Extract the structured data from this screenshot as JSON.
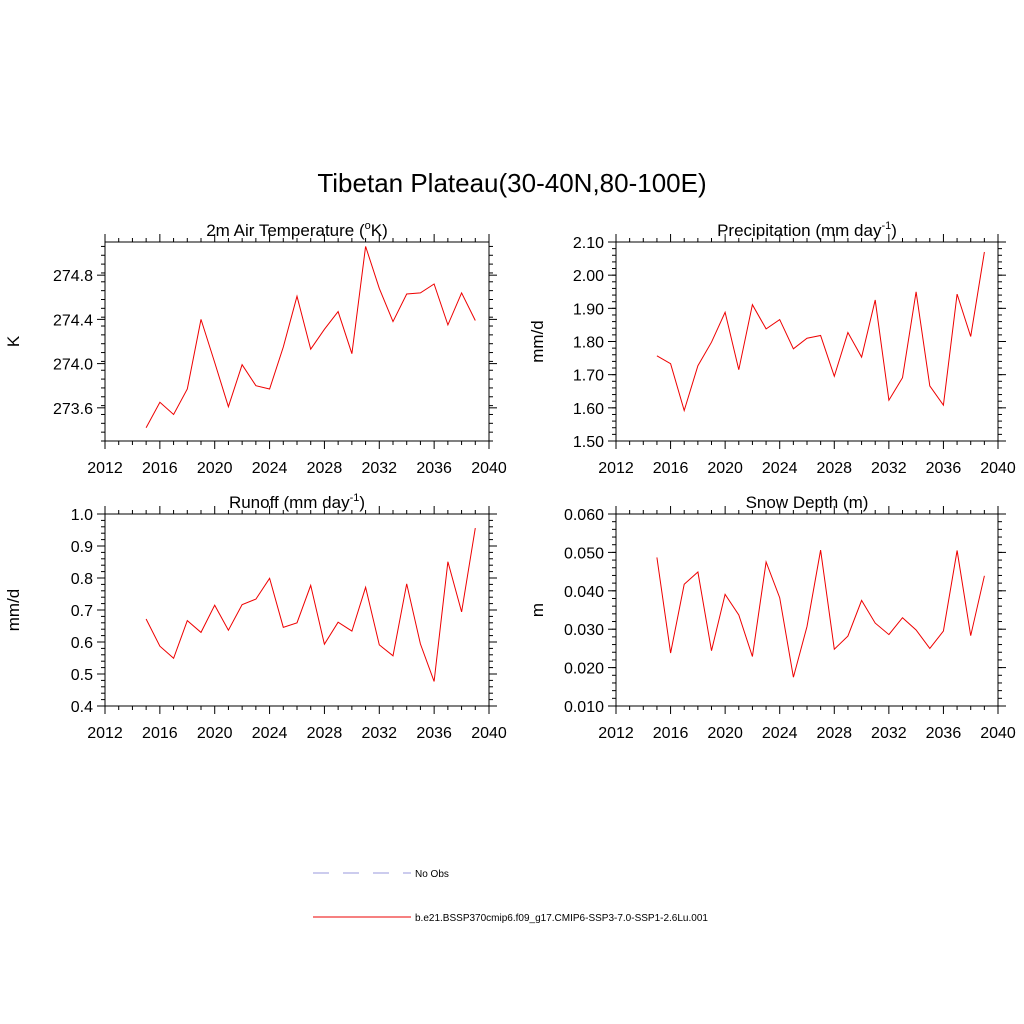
{
  "figure": {
    "title": "Tibetan Plateau(30-40N,80-100E)"
  },
  "legend": [
    {
      "label": "No Obs",
      "color": "#9999dd",
      "style": "dashed"
    },
    {
      "label": "b.e21.BSSP370cmip6.f09_g17.CMIP6-SSP3-7.0-SSP1-2.6Lu.001",
      "color": "#ee0000",
      "style": "solid"
    }
  ],
  "colors": {
    "series": "#ee0000",
    "axis": "#000000"
  },
  "chart_data": [
    {
      "type": "line",
      "title": "2m Air Temperature (",
      "title_sup": "o",
      "title_suffix": "K)",
      "xlabel": "",
      "ylabel": "K",
      "xlim": [
        2012,
        2040
      ],
      "ylim": [
        273.3,
        275.1
      ],
      "xticks": [
        2012,
        2016,
        2020,
        2024,
        2028,
        2032,
        2036,
        2040
      ],
      "xtick_labels": [
        "2012",
        "2016",
        "2020",
        "2024",
        "2028",
        "2032",
        "2036",
        "2040"
      ],
      "yticks": [
        273.6,
        274.0,
        274.4,
        274.8
      ],
      "ytick_labels": [
        "273.6",
        "274.0",
        "274.4",
        "274.8"
      ],
      "series": [
        {
          "x": [
            2015,
            2016,
            2017,
            2018,
            2019,
            2020,
            2021,
            2022,
            2023,
            2024,
            2025,
            2026,
            2027,
            2028,
            2029,
            2030,
            2031,
            2032,
            2033,
            2034,
            2035,
            2036,
            2037,
            2038,
            2039
          ],
          "y": [
            273.42,
            273.65,
            273.54,
            273.77,
            274.4,
            274.01,
            273.61,
            273.99,
            273.8,
            273.77,
            274.15,
            274.61,
            274.13,
            274.31,
            274.47,
            274.09,
            275.06,
            274.68,
            274.38,
            274.63,
            274.64,
            274.72,
            274.35,
            274.64,
            274.39
          ]
        }
      ]
    },
    {
      "type": "line",
      "title": "Precipitation (mm day",
      "title_sup": "-1",
      "title_suffix": ")",
      "xlabel": "",
      "ylabel": "mm/d",
      "xlim": [
        2012,
        2040
      ],
      "ylim": [
        1.5,
        2.1
      ],
      "xticks": [
        2012,
        2016,
        2020,
        2024,
        2028,
        2032,
        2036,
        2040
      ],
      "xtick_labels": [
        "2012",
        "2016",
        "2020",
        "2024",
        "2028",
        "2032",
        "2036",
        "2040"
      ],
      "yticks": [
        1.5,
        1.6,
        1.7,
        1.8,
        1.9,
        2.0,
        2.1
      ],
      "ytick_labels": [
        "1.50",
        "1.60",
        "1.70",
        "1.80",
        "1.90",
        "2.00",
        "2.10"
      ],
      "series": [
        {
          "x": [
            2015,
            2016,
            2017,
            2018,
            2019,
            2020,
            2021,
            2022,
            2023,
            2024,
            2025,
            2026,
            2027,
            2028,
            2029,
            2030,
            2031,
            2032,
            2033,
            2034,
            2035,
            2036,
            2037,
            2038,
            2039
          ],
          "y": [
            1.757,
            1.733,
            1.592,
            1.727,
            1.798,
            1.888,
            1.715,
            1.911,
            1.838,
            1.866,
            1.778,
            1.81,
            1.818,
            1.695,
            1.827,
            1.753,
            1.925,
            1.623,
            1.691,
            1.95,
            1.666,
            1.608,
            1.943,
            1.815,
            2.07
          ]
        }
      ]
    },
    {
      "type": "line",
      "title": "Runoff (mm day",
      "title_sup": "-1",
      "title_suffix": ")",
      "xlabel": "",
      "ylabel": "mm/d",
      "xlim": [
        2012,
        2040
      ],
      "ylim": [
        0.4,
        1.0
      ],
      "xticks": [
        2012,
        2016,
        2020,
        2024,
        2028,
        2032,
        2036,
        2040
      ],
      "xtick_labels": [
        "2012",
        "2016",
        "2020",
        "2024",
        "2028",
        "2032",
        "2036",
        "2040"
      ],
      "yticks": [
        0.4,
        0.5,
        0.6,
        0.7,
        0.8,
        0.9,
        1.0
      ],
      "ytick_labels": [
        "0.4",
        "0.5",
        "0.6",
        "0.7",
        "0.8",
        "0.9",
        "1.0"
      ],
      "series": [
        {
          "x": [
            2015,
            2016,
            2017,
            2018,
            2019,
            2020,
            2021,
            2022,
            2023,
            2024,
            2025,
            2026,
            2027,
            2028,
            2029,
            2030,
            2031,
            2032,
            2033,
            2034,
            2035,
            2036,
            2037,
            2038,
            2039
          ],
          "y": [
            0.672,
            0.587,
            0.549,
            0.667,
            0.63,
            0.715,
            0.637,
            0.717,
            0.734,
            0.799,
            0.646,
            0.66,
            0.777,
            0.593,
            0.662,
            0.634,
            0.771,
            0.591,
            0.557,
            0.782,
            0.594,
            0.477,
            0.851,
            0.694,
            0.956
          ]
        }
      ]
    },
    {
      "type": "line",
      "title": "Snow Depth (m)",
      "title_sup": "",
      "title_suffix": "",
      "xlabel": "",
      "ylabel": "m",
      "xlim": [
        2012,
        2040
      ],
      "ylim": [
        0.01,
        0.06
      ],
      "xticks": [
        2012,
        2016,
        2020,
        2024,
        2028,
        2032,
        2036,
        2040
      ],
      "xtick_labels": [
        "2012",
        "2016",
        "2020",
        "2024",
        "2028",
        "2032",
        "2036",
        "2040"
      ],
      "yticks": [
        0.01,
        0.02,
        0.03,
        0.04,
        0.05,
        0.06
      ],
      "ytick_labels": [
        "0.010",
        "0.020",
        "0.030",
        "0.040",
        "0.050",
        "0.060"
      ],
      "series": [
        {
          "x": [
            2015,
            2016,
            2017,
            2018,
            2019,
            2020,
            2021,
            2022,
            2023,
            2024,
            2025,
            2026,
            2027,
            2028,
            2029,
            2030,
            2031,
            2032,
            2033,
            2034,
            2035,
            2036,
            2037,
            2038,
            2039
          ],
          "y": [
            0.0487,
            0.0238,
            0.0417,
            0.0449,
            0.0244,
            0.0391,
            0.0337,
            0.0229,
            0.0475,
            0.0382,
            0.0175,
            0.0307,
            0.0506,
            0.0248,
            0.0282,
            0.0375,
            0.0316,
            0.0286,
            0.033,
            0.0298,
            0.025,
            0.0295,
            0.0505,
            0.0283,
            0.0439
          ]
        }
      ]
    }
  ]
}
